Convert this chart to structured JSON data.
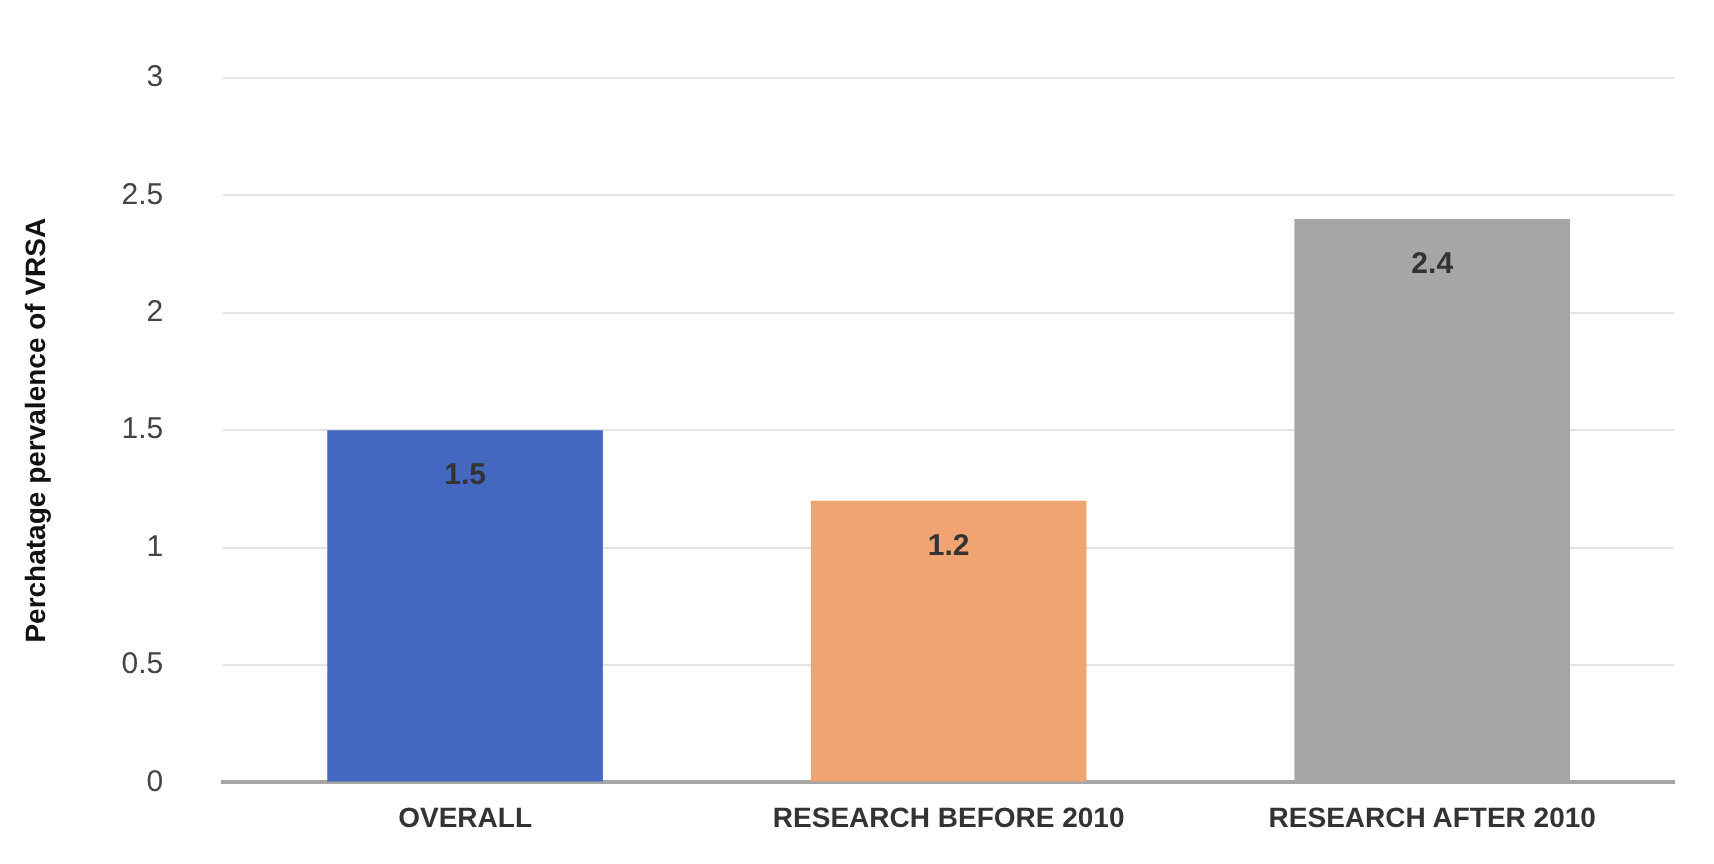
{
  "chart_data": {
    "type": "bar",
    "ylabel": "Perchatage pervalence of VRSA",
    "categories": [
      "OVERALL",
      "RESEARCH BEFORE 2010",
      "RESEARCH AFTER 2010"
    ],
    "values": [
      1.5,
      1.2,
      2.4
    ],
    "colors": [
      "#4468bf",
      "#f0a472",
      "#a6a6a6"
    ],
    "ylim": [
      0,
      3
    ],
    "yticks": [
      0,
      0.5,
      1,
      1.5,
      2,
      2.5,
      3
    ],
    "grid": "y",
    "data_labels": true
  }
}
